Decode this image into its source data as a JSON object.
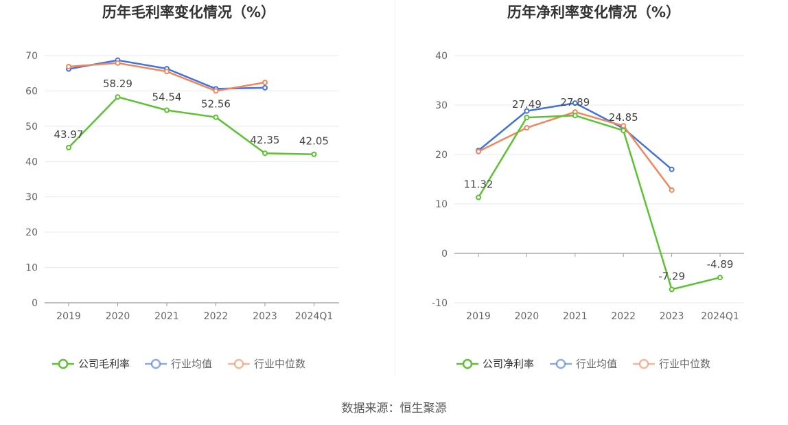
{
  "source": "数据来源：恒生聚源",
  "colors": {
    "company": "#5cc232",
    "avg": "#4472dc",
    "median": "#f0875a"
  },
  "chart_data": [
    {
      "type": "line",
      "title": "历年毛利率变化情况（%）",
      "categories": [
        "2019",
        "2020",
        "2021",
        "2022",
        "2023",
        "2024Q1"
      ],
      "ylim": [
        0,
        70
      ],
      "yticks": [
        0,
        10,
        20,
        30,
        40,
        50,
        60,
        70
      ],
      "grid": true,
      "legend_position": "bottom",
      "series": [
        {
          "name": "公司毛利率",
          "key": "company",
          "values": [
            43.97,
            58.29,
            54.54,
            52.56,
            42.35,
            42.05
          ],
          "labels": [
            "43.97",
            "58.29",
            "54.54",
            "52.56",
            "42.35",
            "42.05"
          ]
        },
        {
          "name": "行业均值",
          "key": "avg",
          "values": [
            66.2,
            68.7,
            66.3,
            60.6,
            60.9,
            null
          ]
        },
        {
          "name": "行业中位数",
          "key": "median",
          "values": [
            66.9,
            67.9,
            65.5,
            60.0,
            62.4,
            null
          ]
        }
      ]
    },
    {
      "type": "line",
      "title": "历年净利率变化情况（%）",
      "categories": [
        "2019",
        "2020",
        "2021",
        "2022",
        "2023",
        "2024Q1"
      ],
      "ylim": [
        -10,
        40
      ],
      "yticks": [
        -10,
        0,
        10,
        20,
        30,
        40
      ],
      "grid": true,
      "legend_position": "bottom",
      "series": [
        {
          "name": "公司净利率",
          "key": "company",
          "values": [
            11.32,
            27.49,
            27.89,
            24.85,
            -7.29,
            -4.89
          ],
          "labels": [
            "11.32",
            "27.49",
            "27.89",
            "24.85",
            "-7.29",
            "-4.89"
          ]
        },
        {
          "name": "行业均值",
          "key": "avg",
          "values": [
            20.8,
            28.8,
            30.4,
            25.3,
            17.0,
            null
          ]
        },
        {
          "name": "行业中位数",
          "key": "median",
          "values": [
            20.6,
            25.4,
            28.6,
            25.8,
            12.8,
            null
          ]
        }
      ]
    }
  ]
}
